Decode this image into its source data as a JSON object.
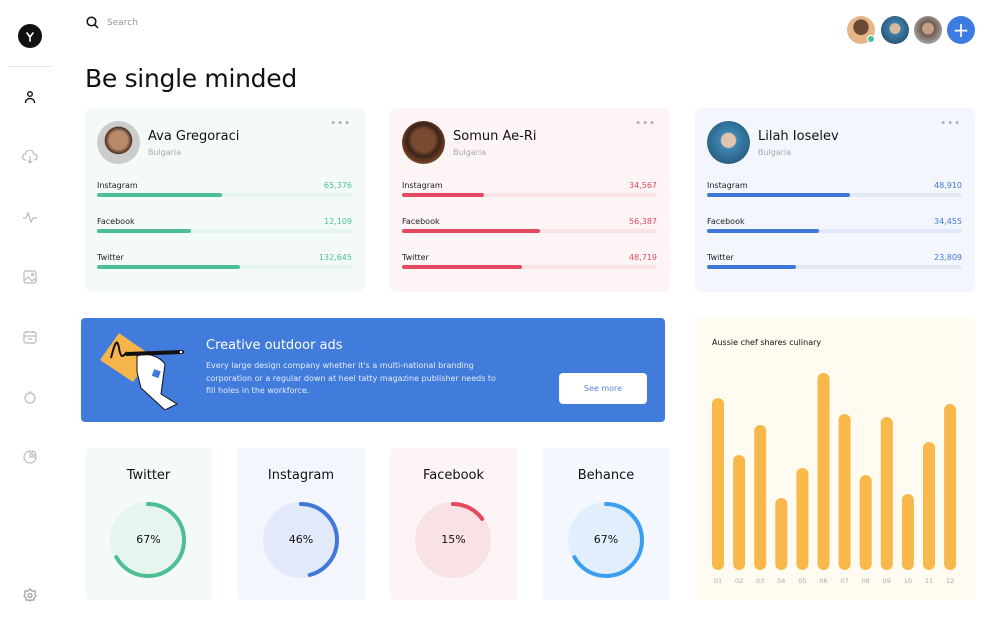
{
  "search": {
    "placeholder": "Search",
    "icon": "search-icon"
  },
  "page_title": "Be single minded",
  "sidebar": {
    "items": [
      "profile",
      "cloud-download",
      "activity",
      "image",
      "calendar",
      "timer",
      "pie-chart"
    ],
    "bottom": "settings"
  },
  "header": {
    "add_button": "+"
  },
  "profiles": [
    {
      "name": "Ava Gregoraci",
      "country": "Bulgaria",
      "color": "#4dbf94",
      "track": "#e6f4ee",
      "bg": "#f3faf7",
      "stats": [
        {
          "label": "Instagram",
          "value": "65,376",
          "fraction": 0.49
        },
        {
          "label": "Facebook",
          "value": "12,109",
          "fraction": 0.37
        },
        {
          "label": "Twitter",
          "value": "132,645",
          "fraction": 0.56
        }
      ]
    },
    {
      "name": "Somun Ae-Ri",
      "country": "Bulgaria",
      "color": "#e34a5f",
      "track": "#f9e3e6",
      "bg": "#fdf4f5",
      "stats": [
        {
          "label": "Instagram",
          "value": "34,567",
          "fraction": 0.32
        },
        {
          "label": "Facebook",
          "value": "56,387",
          "fraction": 0.54
        },
        {
          "label": "Twitter",
          "value": "48,719",
          "fraction": 0.47
        }
      ]
    },
    {
      "name": "Lilah Ioselev",
      "country": "Bulgaria",
      "color": "#3f78d8",
      "track": "#e1e8f7",
      "bg": "#f3f6fd",
      "stats": [
        {
          "label": "Instagram",
          "value": "48,910",
          "fraction": 0.56
        },
        {
          "label": "Facebook",
          "value": "34,455",
          "fraction": 0.44
        },
        {
          "label": "Twitter",
          "value": "23,809",
          "fraction": 0.35
        }
      ]
    }
  ],
  "banner": {
    "title": "Creative outdoor ads",
    "text": "Every large design company whether it's a multi-national branding corporation or a regular down at heel tatty magazine publisher needs to fill holes in the workforce.",
    "button": "See more"
  },
  "minis": [
    {
      "title": "Twitter",
      "percent": 67,
      "label": "67%",
      "color": "#4dbf94",
      "bg": "#f3faf7",
      "disc": "#e7f5ef"
    },
    {
      "title": "Instagram",
      "percent": 46,
      "label": "46%",
      "color": "#3f78d8",
      "bg": "#f3f6fd",
      "disc": "#e2e9f8"
    },
    {
      "title": "Facebook",
      "percent": 15,
      "label": "15%",
      "color": "#e34a5f",
      "bg": "#fdf4f5",
      "disc": "#f9e2e5"
    },
    {
      "title": "Behance",
      "percent": 67,
      "label": "67%",
      "color": "#3b9ef0",
      "bg": "#f2f8fe",
      "disc": "#e1effc"
    }
  ],
  "chart_data": {
    "type": "bar",
    "title": "Aussie chef shares culinary",
    "categories": [
      "01",
      "02",
      "03",
      "04",
      "05",
      "06",
      "07",
      "08",
      "09",
      "10",
      "11",
      "12"
    ],
    "values": [
      172,
      115,
      145,
      72,
      102,
      197,
      156,
      95,
      153,
      76,
      128,
      166
    ],
    "color": "#f9b84a",
    "grid": false
  }
}
